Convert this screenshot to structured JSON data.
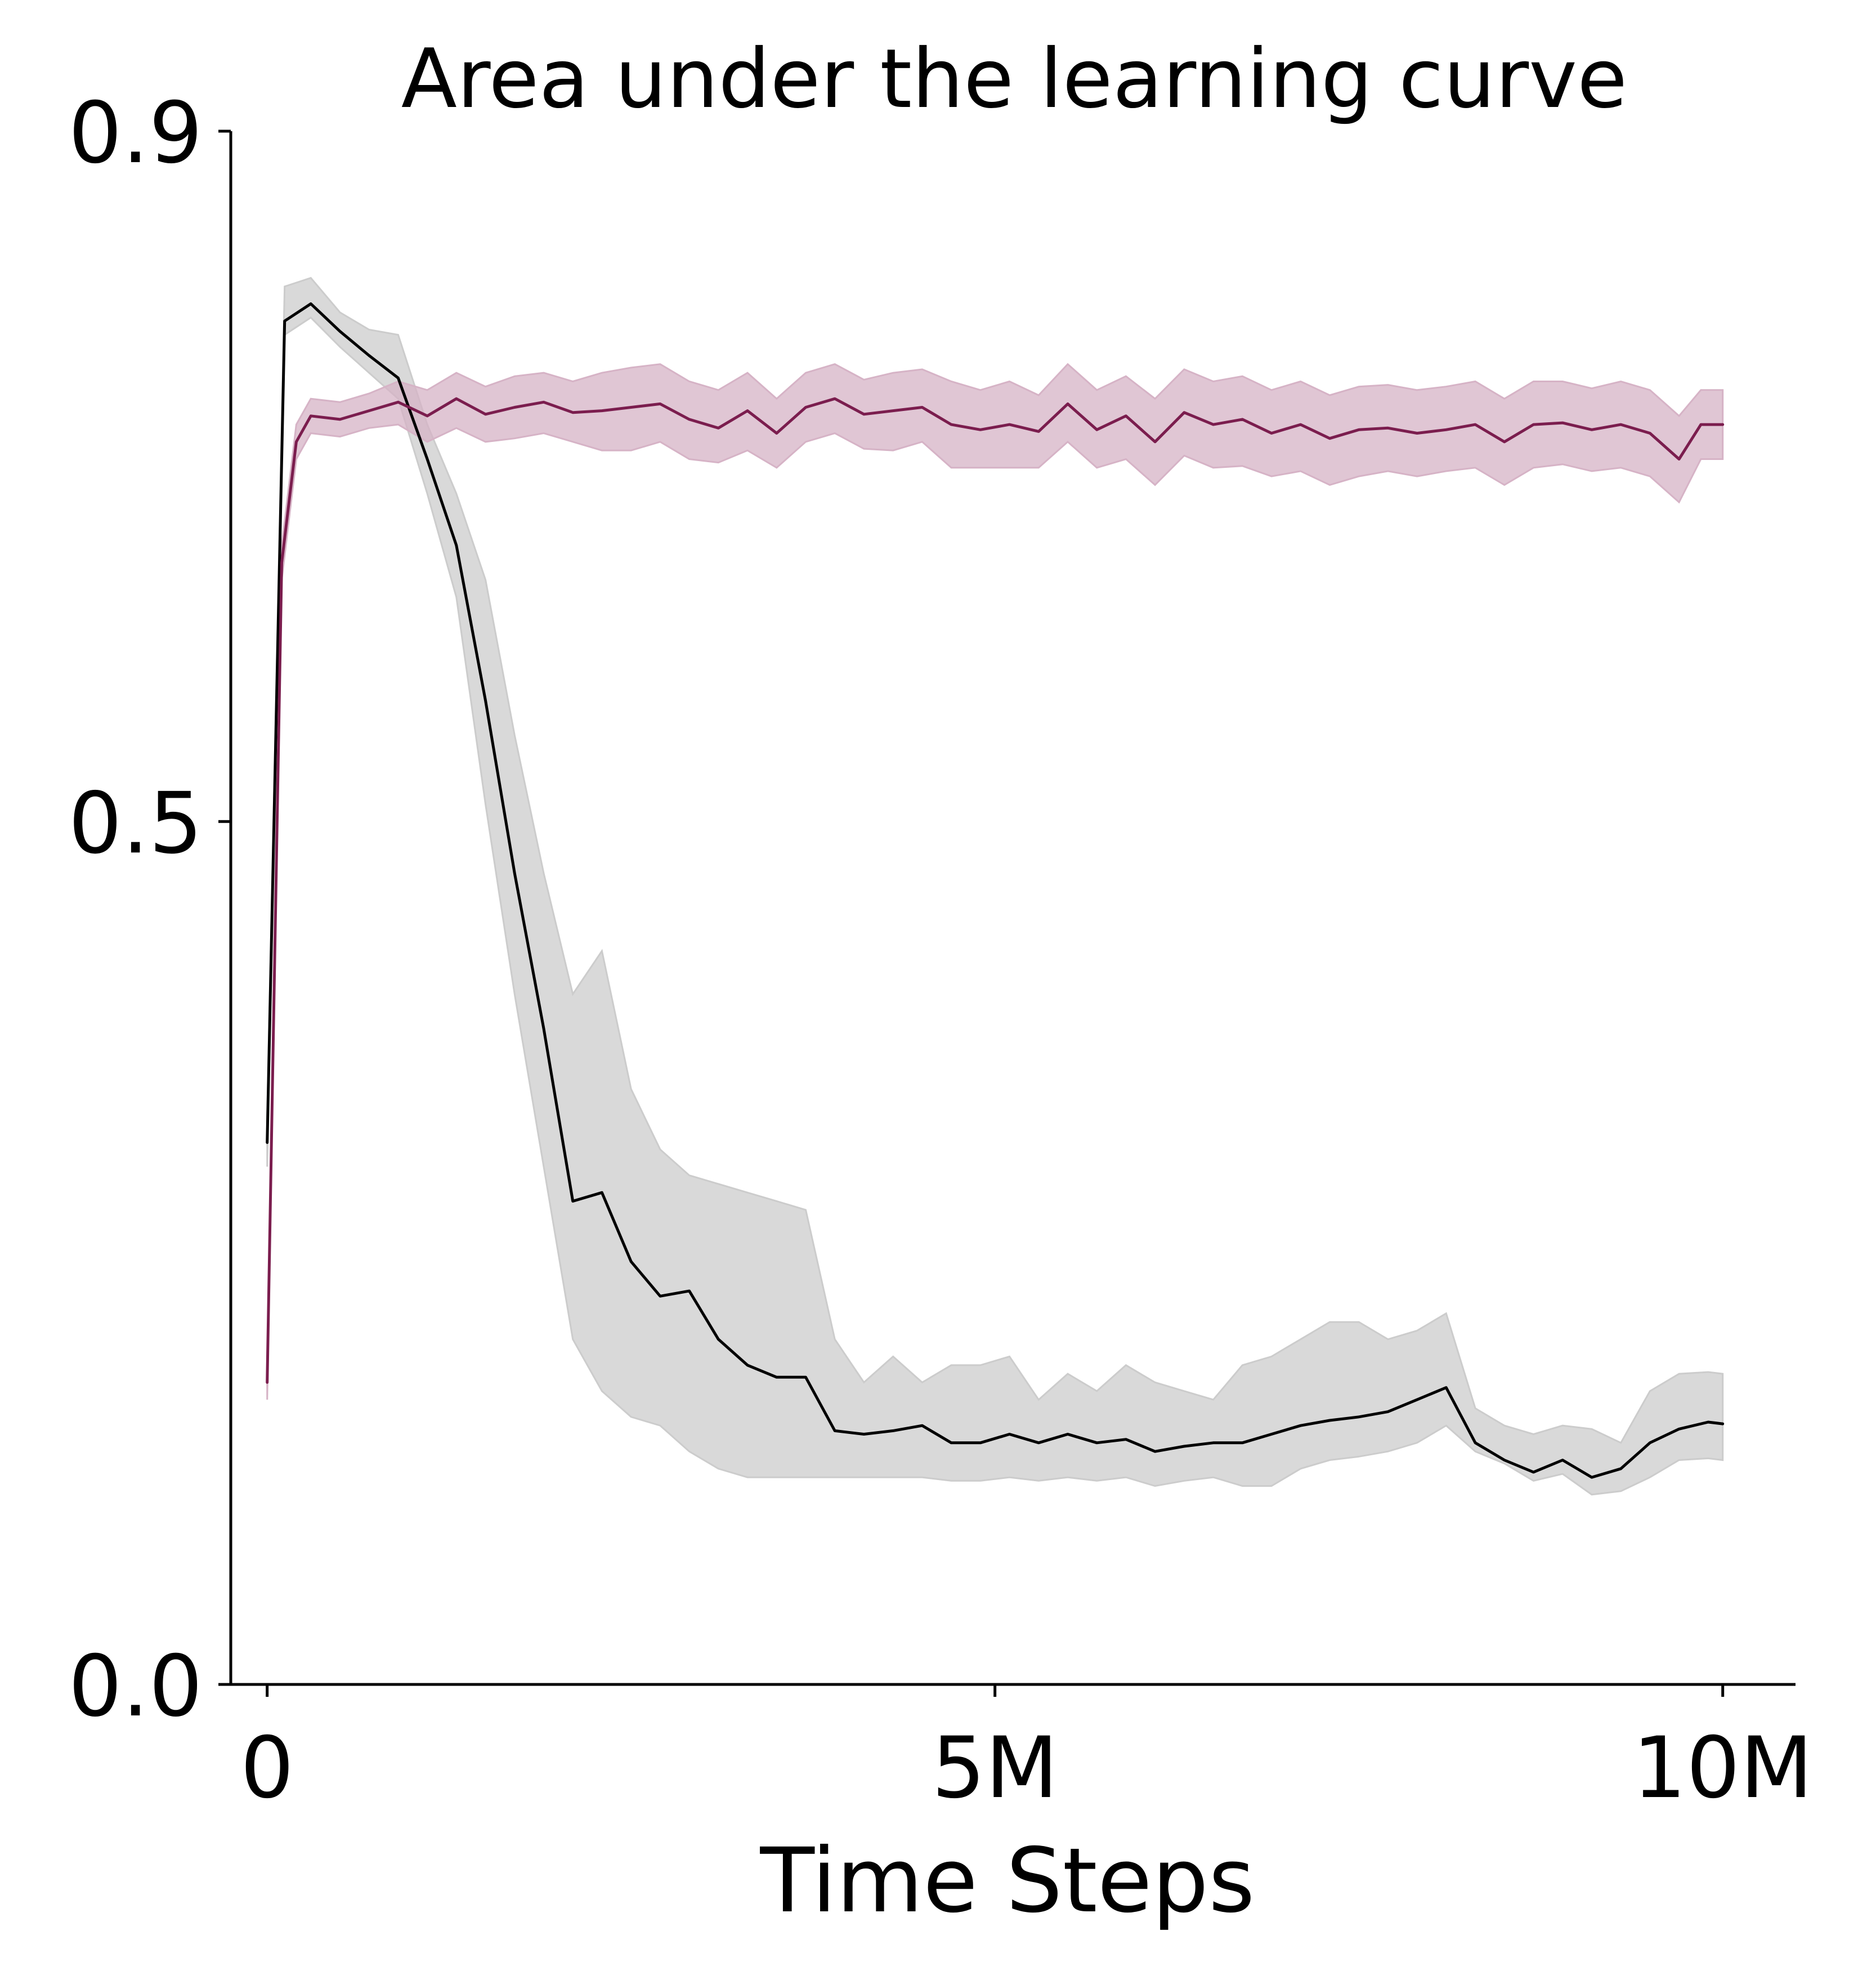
{
  "chart_data": {
    "type": "line",
    "title": "Area under the learning curve",
    "xlabel": "Time Steps",
    "ylabel": "",
    "xlim": [
      -0.25,
      10.5
    ],
    "ylim": [
      0.0,
      0.9
    ],
    "x_unit": "M",
    "xticks": [
      {
        "value": 0,
        "label": "0"
      },
      {
        "value": 5,
        "label": "5M"
      },
      {
        "value": 10,
        "label": "10M"
      }
    ],
    "yticks": [
      {
        "value": 0.0,
        "label": "0.0"
      },
      {
        "value": 0.5,
        "label": "0.5"
      },
      {
        "value": 0.9,
        "label": "0.9"
      }
    ],
    "grid": false,
    "legend": "none",
    "series": [
      {
        "color": "#000000",
        "band_color": "#cccccc",
        "x": [
          0,
          0.12,
          0.3,
          0.5,
          0.7,
          0.9,
          1.1,
          1.3,
          1.5,
          1.7,
          1.9,
          2.1,
          2.3,
          2.5,
          2.7,
          2.9,
          3.1,
          3.3,
          3.5,
          3.7,
          3.9,
          4.1,
          4.3,
          4.5,
          4.7,
          4.9,
          5.1,
          5.3,
          5.5,
          5.7,
          5.9,
          6.1,
          6.3,
          6.5,
          6.7,
          6.9,
          7.1,
          7.3,
          7.5,
          7.7,
          7.9,
          8.1,
          8.3,
          8.5,
          8.7,
          8.9,
          9.1,
          9.3,
          9.5,
          9.7,
          9.9,
          10.0
        ],
        "y": [
          0.314,
          0.79,
          0.8,
          0.784,
          0.77,
          0.757,
          0.71,
          0.66,
          0.57,
          0.47,
          0.38,
          0.28,
          0.285,
          0.245,
          0.225,
          0.228,
          0.2,
          0.185,
          0.178,
          0.178,
          0.147,
          0.145,
          0.147,
          0.15,
          0.14,
          0.14,
          0.145,
          0.14,
          0.145,
          0.14,
          0.142,
          0.135,
          0.138,
          0.14,
          0.14,
          0.145,
          0.15,
          0.153,
          0.155,
          0.158,
          0.165,
          0.172,
          0.14,
          0.13,
          0.123,
          0.13,
          0.12,
          0.125,
          0.14,
          0.148,
          0.152,
          0.151
        ],
        "band_low": [
          0.3,
          0.782,
          0.792,
          0.775,
          0.76,
          0.745,
          0.69,
          0.63,
          0.51,
          0.4,
          0.3,
          0.2,
          0.17,
          0.155,
          0.15,
          0.135,
          0.125,
          0.12,
          0.12,
          0.12,
          0.12,
          0.12,
          0.12,
          0.12,
          0.118,
          0.118,
          0.12,
          0.118,
          0.12,
          0.118,
          0.12,
          0.115,
          0.118,
          0.12,
          0.115,
          0.115,
          0.125,
          0.13,
          0.132,
          0.135,
          0.14,
          0.15,
          0.135,
          0.128,
          0.118,
          0.122,
          0.11,
          0.112,
          0.12,
          0.13,
          0.131,
          0.13
        ],
        "band_high": [
          0.33,
          0.81,
          0.815,
          0.795,
          0.785,
          0.782,
          0.73,
          0.69,
          0.64,
          0.55,
          0.47,
          0.4,
          0.425,
          0.345,
          0.31,
          0.295,
          0.29,
          0.285,
          0.28,
          0.275,
          0.2,
          0.175,
          0.19,
          0.175,
          0.185,
          0.185,
          0.19,
          0.165,
          0.18,
          0.17,
          0.185,
          0.175,
          0.17,
          0.165,
          0.185,
          0.19,
          0.2,
          0.21,
          0.21,
          0.2,
          0.205,
          0.215,
          0.16,
          0.15,
          0.145,
          0.15,
          0.148,
          0.14,
          0.17,
          0.18,
          0.181,
          0.18
        ]
      },
      {
        "color": "#7b1d4e",
        "band_color": "#d6b3c6",
        "x": [
          0,
          0.1,
          0.2,
          0.3,
          0.5,
          0.7,
          0.9,
          1.1,
          1.3,
          1.5,
          1.7,
          1.9,
          2.1,
          2.3,
          2.5,
          2.7,
          2.9,
          3.1,
          3.3,
          3.5,
          3.7,
          3.9,
          4.1,
          4.3,
          4.5,
          4.7,
          4.9,
          5.1,
          5.3,
          5.5,
          5.7,
          5.9,
          6.1,
          6.3,
          6.5,
          6.7,
          6.9,
          7.1,
          7.3,
          7.5,
          7.7,
          7.9,
          8.1,
          8.3,
          8.5,
          8.7,
          8.9,
          9.1,
          9.3,
          9.5,
          9.7,
          9.85,
          10.0
        ],
        "y": [
          0.175,
          0.65,
          0.72,
          0.735,
          0.733,
          0.738,
          0.743,
          0.735,
          0.745,
          0.736,
          0.74,
          0.743,
          0.737,
          0.738,
          0.74,
          0.742,
          0.733,
          0.728,
          0.738,
          0.725,
          0.74,
          0.745,
          0.736,
          0.738,
          0.74,
          0.73,
          0.727,
          0.73,
          0.726,
          0.742,
          0.727,
          0.735,
          0.72,
          0.737,
          0.73,
          0.733,
          0.725,
          0.73,
          0.722,
          0.727,
          0.728,
          0.725,
          0.727,
          0.73,
          0.72,
          0.73,
          0.731,
          0.727,
          0.73,
          0.725,
          0.71,
          0.73,
          0.73
        ],
        "band_low": [
          0.165,
          0.64,
          0.71,
          0.725,
          0.723,
          0.728,
          0.73,
          0.72,
          0.728,
          0.72,
          0.722,
          0.725,
          0.72,
          0.715,
          0.715,
          0.72,
          0.71,
          0.708,
          0.715,
          0.705,
          0.72,
          0.725,
          0.716,
          0.715,
          0.72,
          0.705,
          0.705,
          0.705,
          0.705,
          0.72,
          0.705,
          0.71,
          0.695,
          0.712,
          0.705,
          0.706,
          0.7,
          0.703,
          0.695,
          0.7,
          0.703,
          0.7,
          0.703,
          0.705,
          0.695,
          0.705,
          0.707,
          0.703,
          0.705,
          0.7,
          0.685,
          0.71,
          0.71
        ],
        "band_high": [
          0.185,
          0.66,
          0.73,
          0.745,
          0.743,
          0.748,
          0.755,
          0.75,
          0.76,
          0.752,
          0.758,
          0.76,
          0.755,
          0.76,
          0.763,
          0.765,
          0.755,
          0.75,
          0.76,
          0.745,
          0.76,
          0.765,
          0.756,
          0.76,
          0.762,
          0.755,
          0.75,
          0.755,
          0.747,
          0.765,
          0.75,
          0.758,
          0.745,
          0.762,
          0.755,
          0.758,
          0.75,
          0.755,
          0.747,
          0.752,
          0.753,
          0.75,
          0.752,
          0.755,
          0.745,
          0.755,
          0.755,
          0.751,
          0.755,
          0.75,
          0.735,
          0.75,
          0.75
        ]
      }
    ]
  }
}
